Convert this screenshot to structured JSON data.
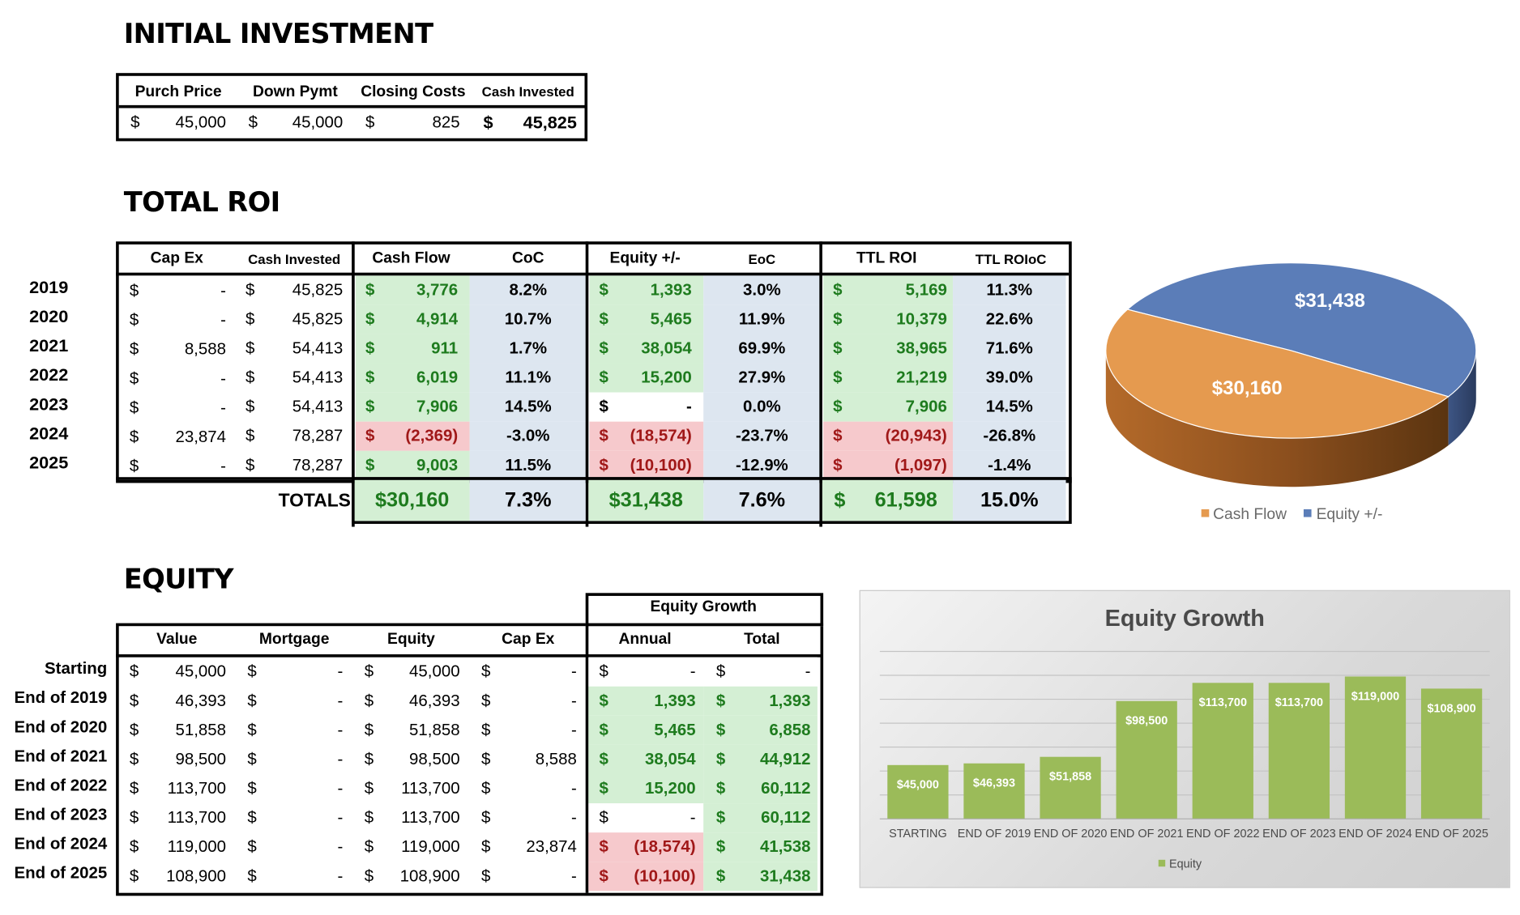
{
  "sections": {
    "initial": "INITIAL INVESTMENT",
    "roi": "TOTAL ROI",
    "equity": "EQUITY"
  },
  "initial_investment": {
    "headers": [
      "Purch Price",
      "Down Pymt",
      "Closing Costs",
      "Cash Invested"
    ],
    "cur": "$",
    "values": [
      "45,000",
      "45,000",
      "825",
      "45,825"
    ]
  },
  "roi": {
    "headers": [
      "Cap Ex",
      "Cash Invested",
      "Cash Flow",
      "CoC",
      "Equity +/-",
      "EoC",
      "TTL ROI",
      "TTL ROIoC"
    ],
    "rows": [
      {
        "year": "2019",
        "capex": "-",
        "cash": "45,825",
        "cf": "3,776",
        "coc": "8.2%",
        "eq": "1,393",
        "eoc": "3.0%",
        "ttl": "5,169",
        "ttlo": "11.3%"
      },
      {
        "year": "2020",
        "capex": "-",
        "cash": "45,825",
        "cf": "4,914",
        "coc": "10.7%",
        "eq": "5,465",
        "eoc": "11.9%",
        "ttl": "10,379",
        "ttlo": "22.6%"
      },
      {
        "year": "2021",
        "capex": "8,588",
        "cash": "54,413",
        "cf": "911",
        "coc": "1.7%",
        "eq": "38,054",
        "eoc": "69.9%",
        "ttl": "38,965",
        "ttlo": "71.6%"
      },
      {
        "year": "2022",
        "capex": "-",
        "cash": "54,413",
        "cf": "6,019",
        "coc": "11.1%",
        "eq": "15,200",
        "eoc": "27.9%",
        "ttl": "21,219",
        "ttlo": "39.0%"
      },
      {
        "year": "2023",
        "capex": "-",
        "cash": "54,413",
        "cf": "7,906",
        "coc": "14.5%",
        "eq": "-",
        "eoc": "0.0%",
        "ttl": "7,906",
        "ttlo": "14.5%"
      },
      {
        "year": "2024",
        "capex": "23,874",
        "cash": "78,287",
        "cf": "(2,369)",
        "coc": "-3.0%",
        "eq": "(18,574)",
        "eoc": "-23.7%",
        "ttl": "(20,943)",
        "ttlo": "-26.8%"
      },
      {
        "year": "2025",
        "capex": "-",
        "cash": "78,287",
        "cf": "9,003",
        "coc": "11.5%",
        "eq": "(10,100)",
        "eoc": "-12.9%",
        "ttl": "(1,097)",
        "ttlo": "-1.4%"
      }
    ],
    "totals": {
      "label": "TOTALS",
      "cf": "$30,160",
      "coc": "7.3%",
      "eq": "$31,438",
      "eoc": "7.6%",
      "ttl_cur": "$",
      "ttl": "61,598",
      "ttlo": "15.0%"
    }
  },
  "equity": {
    "group_header": "Equity Growth",
    "headers": [
      "Value",
      "Mortgage",
      "Equity",
      "Cap Ex",
      "Annual",
      "Total"
    ],
    "rows": [
      {
        "label": "Starting",
        "value": "45,000",
        "mortgage": "-",
        "equity": "45,000",
        "capex": "-",
        "annual": "-",
        "total": "-"
      },
      {
        "label": "End of 2019",
        "value": "46,393",
        "mortgage": "-",
        "equity": "46,393",
        "capex": "-",
        "annual": "1,393",
        "total": "1,393"
      },
      {
        "label": "End of 2020",
        "value": "51,858",
        "mortgage": "-",
        "equity": "51,858",
        "capex": "-",
        "annual": "5,465",
        "total": "6,858"
      },
      {
        "label": "End of 2021",
        "value": "98,500",
        "mortgage": "-",
        "equity": "98,500",
        "capex": "8,588",
        "annual": "38,054",
        "total": "44,912"
      },
      {
        "label": "End of 2022",
        "value": "113,700",
        "mortgage": "-",
        "equity": "113,700",
        "capex": "-",
        "annual": "15,200",
        "total": "60,112"
      },
      {
        "label": "End of 2023",
        "value": "113,700",
        "mortgage": "-",
        "equity": "113,700",
        "capex": "-",
        "annual": "-",
        "total": "60,112"
      },
      {
        "label": "End of 2024",
        "value": "119,000",
        "mortgage": "-",
        "equity": "119,000",
        "capex": "23,874",
        "annual": "(18,574)",
        "total": "41,538"
      },
      {
        "label": "End of 2025",
        "value": "108,900",
        "mortgage": "-",
        "equity": "108,900",
        "capex": "-",
        "annual": "(10,100)",
        "total": "31,438"
      }
    ]
  },
  "chart_data": [
    {
      "type": "pie",
      "title": "",
      "categories": [
        "Cash Flow",
        "Equity +/-"
      ],
      "values": [
        30160,
        31438
      ],
      "labels": [
        "$30,160",
        "$31,438"
      ],
      "colors": [
        "#E59A4F",
        "#5B7DB8"
      ],
      "legend": "bottom"
    },
    {
      "type": "bar",
      "title": "Equity Growth",
      "categories": [
        "STARTING",
        "END OF 2019",
        "END OF 2020",
        "END OF 2021",
        "END OF 2022",
        "END OF 2023",
        "END OF 2024",
        "END OF 2025"
      ],
      "series": [
        {
          "name": "Equity",
          "values": [
            45000,
            46393,
            51858,
            98500,
            113700,
            113700,
            119000,
            108900
          ]
        }
      ],
      "labels": [
        "$45,000",
        "$46,393",
        "$51,858",
        "$98,500",
        "$113,700",
        "$113,700",
        "$119,000",
        "$108,900"
      ],
      "ylim": [
        0,
        140000
      ],
      "color": "#9BBB59",
      "legend": "bottom"
    }
  ]
}
